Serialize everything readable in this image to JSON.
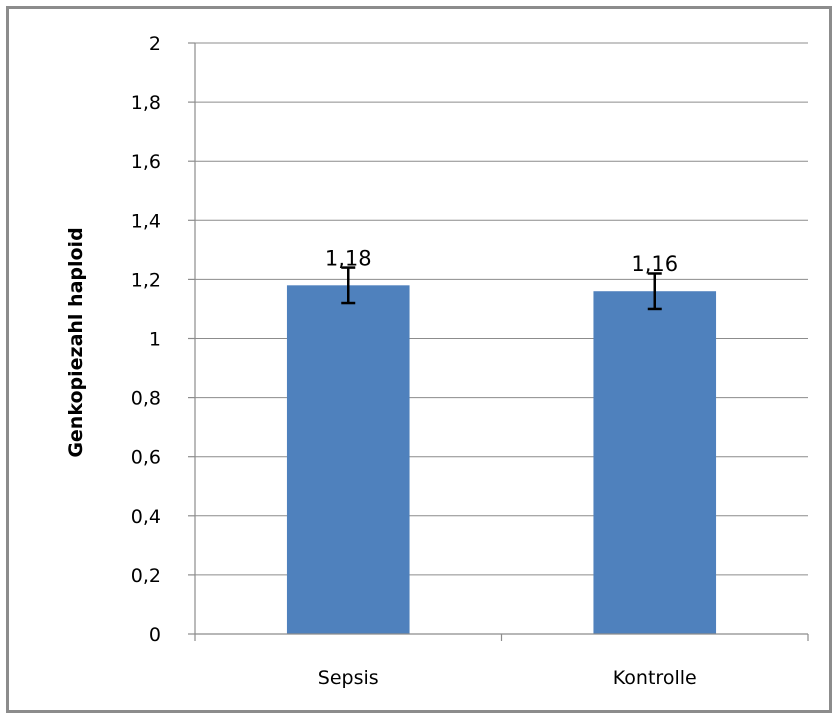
{
  "chart_data": {
    "type": "bar",
    "title": "",
    "xlabel": "",
    "ylabel": "Genkopiezahl haploid",
    "categories": [
      "Sepsis",
      "Kontrolle"
    ],
    "series": [
      {
        "values": [
          1.18,
          1.16
        ],
        "error": [
          0.06,
          0.06
        ],
        "data_labels": [
          "1,18",
          "1,16"
        ],
        "color": "#4f81bd"
      }
    ],
    "ylim": [
      0,
      2
    ],
    "yticks": [
      0,
      0.2,
      0.4,
      0.6,
      0.8,
      1,
      1.2,
      1.4,
      1.6,
      1.8,
      2
    ],
    "ytick_labels": [
      "0",
      "0,2",
      "0,4",
      "0,6",
      "0,8",
      "1",
      "1,2",
      "1,4",
      "1,6",
      "1,8",
      "2"
    ],
    "grid": true,
    "legend": "none"
  }
}
